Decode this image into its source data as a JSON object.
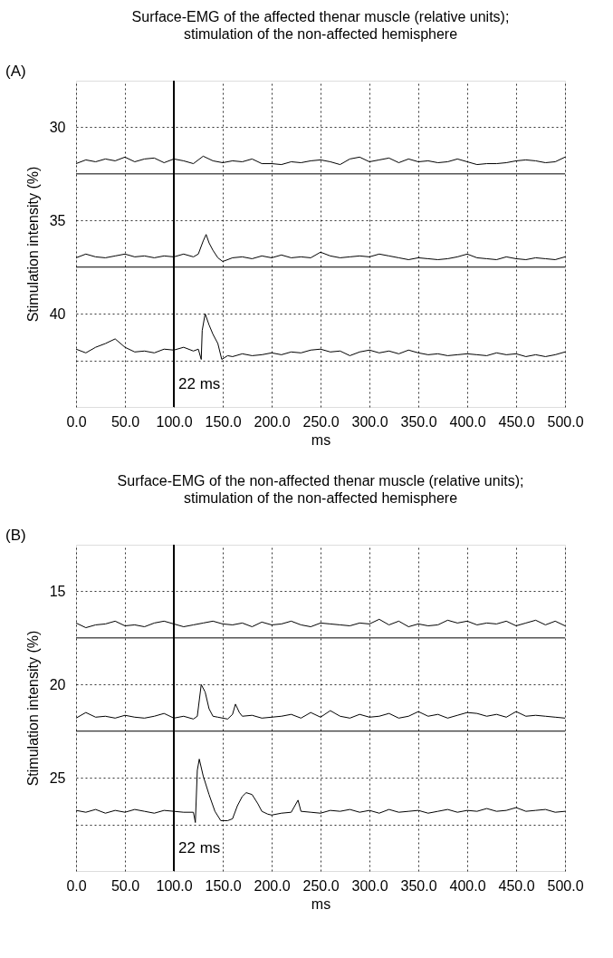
{
  "chart_data": [
    {
      "type": "line",
      "title": "Surface-EMG of the affected thenar muscle (relative units);",
      "subtitle": "stimulation of the non-affected hemisphere",
      "xlabel": "ms",
      "ylabel": "Stimulation intensity (%)",
      "annotations": [
        "(A)",
        "22 ms"
      ],
      "x": [
        0,
        10,
        20,
        30,
        40,
        50,
        60,
        70,
        80,
        90,
        100,
        110,
        120,
        130,
        140,
        150,
        160,
        170,
        180,
        190,
        200,
        210,
        220,
        230,
        240,
        250,
        260,
        270,
        280,
        290,
        300,
        310,
        320,
        330,
        340,
        350,
        360,
        370,
        380,
        390,
        400,
        410,
        420,
        430,
        440,
        450,
        460,
        470,
        480,
        490,
        500
      ],
      "series": [
        {
          "color": "#000000",
          "values": [
            31.95,
            31.75,
            31.85,
            31.7,
            31.8,
            31.6,
            31.85,
            31.7,
            31.65,
            31.9,
            31.7,
            31.8,
            31.95,
            31.55,
            31.8,
            31.9,
            31.8,
            31.85,
            31.7,
            31.95,
            31.95,
            32.0,
            31.85,
            31.9,
            31.8,
            31.75,
            31.85,
            32.0,
            31.7,
            31.6,
            31.85,
            31.75,
            31.65,
            31.9,
            31.7,
            31.85,
            31.8,
            31.9,
            31.85,
            31.7,
            31.85,
            32.0,
            31.95,
            31.95,
            31.9,
            31.8,
            31.75,
            31.8,
            31.9,
            31.85,
            31.6
          ]
        },
        {
          "color": "#000000",
          "x": [
            0,
            10,
            20,
            30,
            40,
            50,
            60,
            70,
            80,
            90,
            100,
            110,
            120,
            125,
            130,
            133,
            136,
            140,
            145,
            150,
            160,
            170,
            180,
            190,
            200,
            210,
            220,
            230,
            240,
            250,
            260,
            270,
            280,
            290,
            300,
            310,
            320,
            330,
            340,
            350,
            360,
            370,
            380,
            390,
            400,
            410,
            420,
            430,
            440,
            450,
            460,
            470,
            480,
            490,
            500
          ],
          "values": [
            37.0,
            36.8,
            36.95,
            37.0,
            36.9,
            36.8,
            36.95,
            36.9,
            37.0,
            36.9,
            36.95,
            36.8,
            36.95,
            36.8,
            36.1,
            35.75,
            36.2,
            36.6,
            37.0,
            37.2,
            37.0,
            36.95,
            37.05,
            36.9,
            37.0,
            36.85,
            37.0,
            36.95,
            37.0,
            36.7,
            36.9,
            37.0,
            36.95,
            36.9,
            36.95,
            36.8,
            36.9,
            37.0,
            37.1,
            37.0,
            37.05,
            37.1,
            37.05,
            36.95,
            36.8,
            37.0,
            37.05,
            37.1,
            36.95,
            37.05,
            37.1,
            37.0,
            37.05,
            37.1,
            36.95
          ]
        },
        {
          "color": "#000000",
          "x": [
            0,
            10,
            20,
            30,
            40,
            50,
            60,
            70,
            80,
            90,
            100,
            110,
            120,
            125,
            128,
            129,
            132,
            136,
            140,
            145,
            149,
            155,
            160,
            170,
            180,
            190,
            200,
            210,
            220,
            230,
            240,
            250,
            260,
            270,
            280,
            290,
            300,
            310,
            320,
            330,
            340,
            350,
            360,
            370,
            380,
            390,
            400,
            410,
            420,
            430,
            440,
            450,
            460,
            470,
            480,
            490,
            500
          ],
          "values": [
            41.9,
            42.1,
            41.8,
            41.6,
            41.35,
            41.8,
            42.05,
            42.0,
            42.1,
            41.9,
            41.95,
            41.8,
            42.0,
            41.9,
            42.45,
            40.9,
            40.0,
            40.6,
            41.1,
            41.6,
            42.45,
            42.25,
            42.3,
            42.15,
            42.25,
            42.2,
            42.1,
            42.2,
            42.05,
            42.1,
            41.95,
            41.9,
            42.05,
            42.0,
            42.25,
            42.05,
            41.95,
            42.1,
            42.0,
            42.15,
            41.95,
            42.1,
            42.2,
            42.15,
            42.25,
            42.2,
            42.15,
            42.2,
            42.25,
            42.1,
            42.2,
            42.15,
            42.3,
            42.2,
            42.3,
            42.2,
            42.05
          ]
        }
      ],
      "xlim": [
        0,
        500
      ],
      "xticks": [
        {
          "value": 0,
          "label": "0.0"
        },
        {
          "value": 50,
          "label": "50.0"
        },
        {
          "value": 100,
          "label": "100.0"
        },
        {
          "value": 150,
          "label": "150.0"
        },
        {
          "value": 200,
          "label": "200.0"
        },
        {
          "value": 250,
          "label": "250.0"
        },
        {
          "value": 300,
          "label": "300.0"
        },
        {
          "value": 350,
          "label": "350.0"
        },
        {
          "value": 400,
          "label": "400.0"
        },
        {
          "value": 450,
          "label": "450.0"
        },
        {
          "value": 500,
          "label": "500.0"
        }
      ],
      "ylim": [
        45,
        27.5
      ],
      "yticks": [
        30,
        35,
        40,
        {
          "value": 42.5,
          "label": null
        }
      ],
      "ref_lines": [
        {
          "axis": "x",
          "value": 100,
          "color": "#000000"
        },
        {
          "axis": "y",
          "value": 32.5,
          "color": "#000000"
        },
        {
          "axis": "y",
          "value": 37.5,
          "color": "#000000"
        }
      ],
      "grid": true,
      "legend": false,
      "marker": "none",
      "line_style": "solid"
    },
    {
      "type": "line",
      "title": "Surface-EMG of the non-affected thenar muscle (relative units);",
      "subtitle": "stimulation of the non-affected hemisphere",
      "xlabel": "ms",
      "ylabel": "Stimulation intensity (%)",
      "annotations": [
        "(B)",
        "22 ms"
      ],
      "x": [
        0,
        10,
        20,
        30,
        40,
        50,
        60,
        70,
        80,
        90,
        100,
        110,
        120,
        130,
        140,
        150,
        160,
        170,
        180,
        190,
        200,
        210,
        220,
        230,
        240,
        250,
        260,
        270,
        280,
        290,
        300,
        310,
        320,
        330,
        340,
        350,
        360,
        370,
        380,
        390,
        400,
        410,
        420,
        430,
        440,
        450,
        460,
        470,
        480,
        490,
        500
      ],
      "series": [
        {
          "color": "#000000",
          "values": [
            16.7,
            16.95,
            16.8,
            16.75,
            16.6,
            16.85,
            16.8,
            16.9,
            16.7,
            16.6,
            16.75,
            16.9,
            16.8,
            16.7,
            16.6,
            16.75,
            16.8,
            16.7,
            16.9,
            16.65,
            16.8,
            16.75,
            16.6,
            16.8,
            16.9,
            16.7,
            16.75,
            16.8,
            16.85,
            16.7,
            16.75,
            16.5,
            16.8,
            16.6,
            16.9,
            16.75,
            16.85,
            16.8,
            16.55,
            16.7,
            16.6,
            16.8,
            16.7,
            16.75,
            16.6,
            16.85,
            16.7,
            16.55,
            16.8,
            16.6,
            16.85
          ]
        },
        {
          "color": "#000000",
          "x": [
            0,
            10,
            20,
            30,
            40,
            50,
            60,
            70,
            80,
            90,
            100,
            110,
            120,
            124,
            128,
            132,
            136,
            140,
            145,
            150,
            155,
            160,
            163,
            167,
            170,
            180,
            190,
            200,
            210,
            220,
            230,
            240,
            250,
            260,
            270,
            280,
            290,
            300,
            310,
            320,
            330,
            340,
            350,
            360,
            370,
            380,
            390,
            400,
            410,
            420,
            430,
            440,
            450,
            460,
            470,
            480,
            490,
            500
          ],
          "values": [
            21.8,
            21.5,
            21.75,
            21.7,
            21.8,
            21.65,
            21.75,
            21.8,
            21.7,
            21.55,
            21.8,
            21.7,
            21.85,
            21.7,
            20.0,
            20.4,
            21.3,
            21.7,
            21.75,
            21.8,
            21.85,
            21.6,
            21.05,
            21.5,
            21.7,
            21.65,
            21.8,
            21.75,
            21.7,
            21.6,
            21.8,
            21.5,
            21.75,
            21.4,
            21.7,
            21.8,
            21.6,
            21.75,
            21.7,
            21.55,
            21.8,
            21.7,
            21.45,
            21.7,
            21.6,
            21.8,
            21.65,
            21.5,
            21.55,
            21.7,
            21.6,
            21.75,
            21.45,
            21.7,
            21.65,
            21.7,
            21.75,
            21.8
          ]
        },
        {
          "color": "#000000",
          "x": [
            0,
            10,
            20,
            30,
            40,
            50,
            60,
            70,
            80,
            90,
            100,
            110,
            120,
            122,
            124,
            126,
            130,
            136,
            142,
            148,
            155,
            160,
            165,
            170,
            174,
            180,
            186,
            190,
            196,
            200,
            210,
            220,
            227,
            230,
            240,
            250,
            260,
            270,
            280,
            290,
            300,
            310,
            320,
            330,
            340,
            350,
            360,
            370,
            380,
            390,
            400,
            410,
            420,
            430,
            440,
            450,
            460,
            470,
            480,
            490,
            500
          ],
          "values": [
            26.75,
            26.85,
            26.7,
            26.9,
            26.75,
            26.85,
            26.7,
            26.8,
            26.9,
            26.75,
            26.8,
            26.85,
            26.85,
            27.4,
            24.6,
            24.0,
            24.9,
            25.9,
            26.8,
            27.3,
            27.3,
            27.2,
            26.5,
            26.0,
            25.8,
            25.9,
            26.4,
            26.8,
            26.95,
            27.0,
            26.9,
            26.85,
            26.2,
            26.8,
            26.85,
            26.9,
            26.75,
            26.8,
            26.7,
            26.85,
            26.75,
            26.9,
            26.7,
            26.85,
            26.8,
            26.75,
            26.9,
            26.8,
            26.7,
            26.85,
            26.75,
            26.8,
            26.65,
            26.8,
            26.75,
            26.6,
            26.8,
            26.75,
            26.7,
            26.85,
            26.8
          ]
        }
      ],
      "xlim": [
        0,
        500
      ],
      "xticks": [
        {
          "value": 0,
          "label": "0.0"
        },
        {
          "value": 50,
          "label": "50.0"
        },
        {
          "value": 100,
          "label": "100.0"
        },
        {
          "value": 150,
          "label": "150.0"
        },
        {
          "value": 200,
          "label": "200.0"
        },
        {
          "value": 250,
          "label": "250.0"
        },
        {
          "value": 300,
          "label": "300.0"
        },
        {
          "value": 350,
          "label": "350.0"
        },
        {
          "value": 400,
          "label": "400.0"
        },
        {
          "value": 450,
          "label": "450.0"
        },
        {
          "value": 500,
          "label": "500.0"
        }
      ],
      "ylim": [
        30,
        12.5
      ],
      "yticks": [
        15,
        20,
        25,
        {
          "value": 27.5,
          "label": null
        }
      ],
      "ref_lines": [
        {
          "axis": "x",
          "value": 100,
          "color": "#000000"
        },
        {
          "axis": "y",
          "value": 17.5,
          "color": "#000000"
        },
        {
          "axis": "y",
          "value": 22.5,
          "color": "#000000"
        }
      ],
      "grid": true,
      "legend": false,
      "marker": "none",
      "line_style": "solid"
    }
  ]
}
